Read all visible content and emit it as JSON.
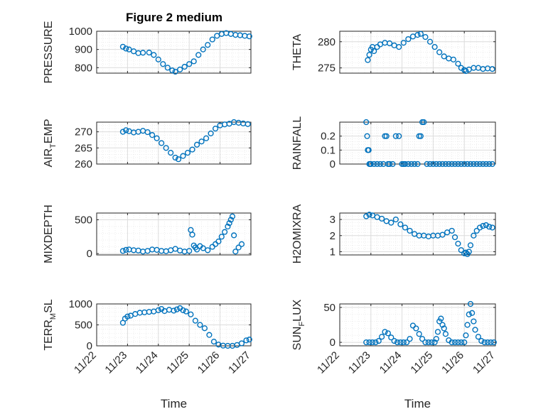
{
  "colors": {
    "marker": "#0072BD",
    "axis": "#262626",
    "background": "#ffffff"
  },
  "chart_data": [
    {
      "type": "scatter",
      "title": "Figure 2 medium",
      "ylabel_main": "PRESSURE",
      "ylabel_sub": "",
      "xlabel": "",
      "ylim": [
        770,
        1000
      ],
      "yticks": [
        800,
        900,
        1000
      ],
      "ytick_labels": [
        "800",
        "900",
        "1000"
      ],
      "xlim": [
        0,
        5
      ],
      "xticks": [
        0,
        1,
        2,
        3,
        4,
        5
      ],
      "xtick_labels": [],
      "grid": true,
      "x": [
        0.85,
        0.95,
        1.05,
        1.2,
        1.35,
        1.5,
        1.7,
        1.85,
        2.0,
        2.15,
        2.3,
        2.45,
        2.55,
        2.7,
        2.85,
        3.0,
        3.15,
        3.3,
        3.45,
        3.6,
        3.75,
        3.9,
        4.05,
        4.2,
        4.35,
        4.5,
        4.65,
        4.8,
        4.95
      ],
      "y": [
        915,
        905,
        900,
        890,
        880,
        882,
        883,
        870,
        845,
        820,
        800,
        785,
        778,
        790,
        805,
        820,
        835,
        870,
        900,
        925,
        955,
        975,
        985,
        990,
        985,
        980,
        978,
        975,
        972
      ]
    },
    {
      "type": "scatter",
      "title": "",
      "ylabel_main": "THETA",
      "ylabel_sub": "",
      "xlabel": "",
      "ylim": [
        274,
        282
      ],
      "yticks": [
        275,
        280
      ],
      "ytick_labels": [
        "275",
        "280"
      ],
      "xlim": [
        0,
        5
      ],
      "xticks": [
        0,
        1,
        2,
        3,
        4,
        5
      ],
      "xtick_labels": [],
      "grid": true,
      "x": [
        0.9,
        0.95,
        1.0,
        1.05,
        1.1,
        1.2,
        1.3,
        1.45,
        1.6,
        1.75,
        1.9,
        2.05,
        2.2,
        2.35,
        2.5,
        2.6,
        2.75,
        2.9,
        3.05,
        3.2,
        3.35,
        3.5,
        3.65,
        3.8,
        3.9,
        4.0,
        4.05,
        4.15,
        4.3,
        4.45,
        4.6,
        4.75,
        4.9
      ],
      "y": [
        276.5,
        277.5,
        278.5,
        279.0,
        278.2,
        279.0,
        279.5,
        279.8,
        279.7,
        279.3,
        279.0,
        279.8,
        280.5,
        281.0,
        281.3,
        281.5,
        280.9,
        280.0,
        279.0,
        278.0,
        277.2,
        276.8,
        276.6,
        275.8,
        275.0,
        274.6,
        274.4,
        274.7,
        275.0,
        275.0,
        274.8,
        274.9,
        274.8
      ]
    },
    {
      "type": "scatter",
      "title": "",
      "ylabel_main": "AIR",
      "ylabel_sub": "T",
      "ylabel_tail": "EMP",
      "xlabel": "",
      "ylim": [
        260,
        273
      ],
      "yticks": [
        260,
        265,
        270
      ],
      "ytick_labels": [
        "260",
        "265",
        "270"
      ],
      "xlim": [
        0,
        5
      ],
      "xticks": [
        0,
        1,
        2,
        3,
        4,
        5
      ],
      "xtick_labels": [],
      "grid": true,
      "x": [
        0.85,
        0.95,
        1.05,
        1.2,
        1.35,
        1.5,
        1.65,
        1.8,
        1.95,
        2.1,
        2.25,
        2.4,
        2.55,
        2.65,
        2.8,
        2.95,
        3.1,
        3.25,
        3.4,
        3.55,
        3.7,
        3.85,
        4.0,
        4.15,
        4.3,
        4.45,
        4.6,
        4.75,
        4.9
      ],
      "y": [
        270.0,
        270.5,
        270.2,
        269.8,
        270.0,
        270.3,
        269.9,
        269.0,
        268.0,
        266.5,
        265.0,
        263.5,
        262.0,
        261.5,
        262.5,
        263.5,
        264.5,
        266.0,
        267.0,
        268.0,
        269.5,
        271.0,
        272.0,
        272.3,
        272.5,
        273.0,
        272.8,
        272.6,
        272.4
      ]
    },
    {
      "type": "scatter",
      "title": "",
      "ylabel_main": "RAINFALL",
      "ylabel_sub": "",
      "xlabel": "",
      "ylim": [
        0,
        0.3
      ],
      "yticks": [
        0,
        0.1,
        0.2
      ],
      "ytick_labels": [
        "0",
        "0.1",
        "0.2"
      ],
      "xlim": [
        0,
        5
      ],
      "xticks": [
        0,
        1,
        2,
        3,
        4,
        5
      ],
      "xtick_labels": [],
      "grid": true,
      "x": [
        0.85,
        0.88,
        0.9,
        0.93,
        0.95,
        0.98,
        1.0,
        1.1,
        1.2,
        1.3,
        1.4,
        1.45,
        1.5,
        1.55,
        1.6,
        1.7,
        1.8,
        1.9,
        2.0,
        2.05,
        2.1,
        2.2,
        2.3,
        2.4,
        2.5,
        2.55,
        2.6,
        2.65,
        2.7,
        2.8,
        2.9,
        3.0,
        3.1,
        3.2,
        3.3,
        3.4,
        3.5,
        3.6,
        3.7,
        3.8,
        3.9,
        4.0,
        4.1,
        4.2,
        4.3,
        4.4,
        4.5,
        4.6,
        4.7,
        4.8,
        4.9
      ],
      "y": [
        0.3,
        0.2,
        0.1,
        0.1,
        0.0,
        0.0,
        0.0,
        0.0,
        0.0,
        0.0,
        0.0,
        0.2,
        0.2,
        0.0,
        0.0,
        0.0,
        0.2,
        0.2,
        0.0,
        0.0,
        0.0,
        0.0,
        0.0,
        0.0,
        0.0,
        0.2,
        0.2,
        0.3,
        0.3,
        0.0,
        0.0,
        0.0,
        0.0,
        0.0,
        0.0,
        0.0,
        0.0,
        0.0,
        0.0,
        0.0,
        0.0,
        0.0,
        0.0,
        0.0,
        0.0,
        0.0,
        0.0,
        0.0,
        0.0,
        0.0,
        0.0
      ]
    },
    {
      "type": "scatter",
      "title": "",
      "ylabel_main": "MIXDEPTH",
      "ylabel_sub": "",
      "xlabel": "",
      "ylim": [
        -20,
        600
      ],
      "yticks": [
        0,
        500
      ],
      "ytick_labels": [
        "0",
        "500"
      ],
      "xlim": [
        0,
        5
      ],
      "xticks": [
        0,
        1,
        2,
        3,
        4,
        5
      ],
      "xtick_labels": [],
      "grid": true,
      "x": [
        0.85,
        0.95,
        1.05,
        1.2,
        1.35,
        1.5,
        1.65,
        1.8,
        1.95,
        2.1,
        2.25,
        2.4,
        2.55,
        2.7,
        2.85,
        3.0,
        3.05,
        3.1,
        3.15,
        3.2,
        3.25,
        3.35,
        3.45,
        3.6,
        3.75,
        3.85,
        3.95,
        4.05,
        4.15,
        4.25,
        4.3,
        4.35,
        4.4,
        4.45,
        4.5,
        4.6,
        4.7
      ],
      "y": [
        40,
        55,
        60,
        50,
        45,
        30,
        40,
        60,
        55,
        40,
        35,
        50,
        70,
        45,
        30,
        40,
        350,
        280,
        120,
        90,
        60,
        110,
        80,
        50,
        100,
        140,
        180,
        250,
        320,
        400,
        450,
        500,
        550,
        270,
        30,
        90,
        140
      ]
    },
    {
      "type": "scatter",
      "title": "",
      "ylabel_main": "H2OMIXRA",
      "ylabel_sub": "",
      "xlabel": "",
      "ylim": [
        0.8,
        3.4
      ],
      "yticks": [
        1,
        2,
        3
      ],
      "ytick_labels": [
        "1",
        "2",
        "3"
      ],
      "xlim": [
        0,
        5
      ],
      "xticks": [
        0,
        1,
        2,
        3,
        4,
        5
      ],
      "xtick_labels": [],
      "grid": true,
      "x": [
        0.85,
        0.95,
        1.05,
        1.2,
        1.35,
        1.5,
        1.65,
        1.8,
        1.95,
        2.1,
        2.25,
        2.4,
        2.55,
        2.7,
        2.85,
        3.0,
        3.15,
        3.3,
        3.45,
        3.6,
        3.7,
        3.8,
        3.9,
        4.0,
        4.05,
        4.1,
        4.15,
        4.2,
        4.3,
        4.4,
        4.5,
        4.6,
        4.7,
        4.8,
        4.9
      ],
      "y": [
        3.2,
        3.3,
        3.25,
        3.15,
        3.05,
        2.9,
        2.8,
        3.0,
        2.7,
        2.5,
        2.3,
        2.1,
        2.0,
        2.0,
        1.95,
        2.0,
        2.0,
        2.05,
        2.2,
        2.3,
        1.9,
        1.5,
        1.1,
        0.9,
        0.95,
        0.85,
        1.0,
        1.4,
        2.0,
        2.3,
        2.5,
        2.6,
        2.65,
        2.55,
        2.5
      ]
    },
    {
      "type": "scatter",
      "title": "",
      "ylabel_main": "TERR",
      "ylabel_sub": "M",
      "ylabel_tail": "SL",
      "xlabel": "Time",
      "ylim": [
        0,
        1000
      ],
      "yticks": [
        0,
        500,
        1000
      ],
      "ytick_labels": [
        "0",
        "500",
        "1000"
      ],
      "xlim": [
        0,
        5
      ],
      "xticks": [
        0,
        1,
        2,
        3,
        4,
        5
      ],
      "xtick_labels": [
        "11/22",
        "11/23",
        "11/24",
        "11/25",
        "11/26",
        "11/27"
      ],
      "grid": true,
      "x": [
        0.85,
        0.92,
        1.0,
        1.1,
        1.25,
        1.4,
        1.55,
        1.7,
        1.85,
        2.0,
        2.1,
        2.2,
        2.35,
        2.5,
        2.6,
        2.7,
        2.8,
        2.9,
        3.05,
        3.2,
        3.35,
        3.5,
        3.65,
        3.8,
        3.95,
        4.1,
        4.25,
        4.4,
        4.55,
        4.7,
        4.85,
        4.95
      ],
      "y": [
        550,
        650,
        700,
        720,
        760,
        790,
        800,
        810,
        820,
        850,
        880,
        830,
        860,
        840,
        870,
        900,
        850,
        820,
        750,
        600,
        500,
        420,
        260,
        100,
        30,
        5,
        0,
        0,
        20,
        60,
        130,
        150
      ]
    },
    {
      "type": "scatter",
      "title": "",
      "ylabel_main": "SUN",
      "ylabel_sub": "F",
      "ylabel_tail": "LUX",
      "xlabel": "Time",
      "ylim": [
        -5,
        55
      ],
      "yticks": [
        0,
        50
      ],
      "ytick_labels": [
        "0",
        "50"
      ],
      "xlim": [
        0,
        5
      ],
      "xticks": [
        0,
        1,
        2,
        3,
        4,
        5
      ],
      "xtick_labels": [
        "11/22",
        "11/23",
        "11/24",
        "11/25",
        "11/26",
        "11/27"
      ],
      "grid": true,
      "x": [
        0.85,
        0.95,
        1.05,
        1.15,
        1.25,
        1.35,
        1.45,
        1.55,
        1.65,
        1.75,
        1.85,
        1.95,
        2.05,
        2.15,
        2.25,
        2.35,
        2.45,
        2.55,
        2.65,
        2.75,
        2.85,
        2.95,
        3.05,
        3.1,
        3.15,
        3.2,
        3.25,
        3.3,
        3.35,
        3.4,
        3.5,
        3.6,
        3.7,
        3.8,
        3.9,
        4.0,
        4.05,
        4.1,
        4.15,
        4.2,
        4.25,
        4.3,
        4.35,
        4.45,
        4.55,
        4.65,
        4.75,
        4.85,
        4.95
      ],
      "y": [
        0,
        0,
        0,
        0,
        2,
        8,
        15,
        13,
        7,
        2,
        0,
        0,
        0,
        0,
        5,
        24,
        20,
        12,
        5,
        0,
        0,
        0,
        0,
        5,
        15,
        30,
        34,
        25,
        20,
        12,
        3,
        0,
        0,
        0,
        0,
        0,
        10,
        25,
        40,
        55,
        42,
        30,
        18,
        8,
        2,
        0,
        0,
        0,
        0
      ]
    }
  ]
}
